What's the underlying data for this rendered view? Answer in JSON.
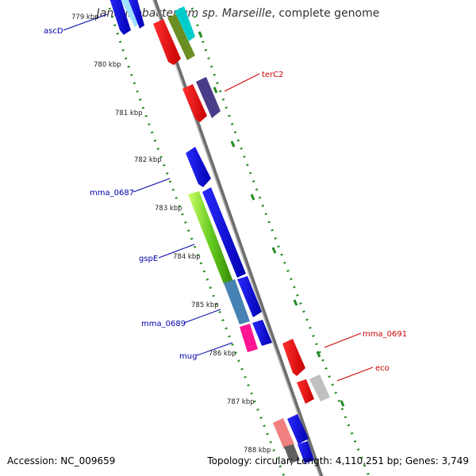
{
  "title": {
    "organism": "Janthinobacterium sp. Marseille",
    "suffix": ", complete genome"
  },
  "footer": {
    "accession": "Accession: NC_009659",
    "topology": "Topology: circular; Length: 4,110,251 bp; Genes: 3,749"
  },
  "ticks": [
    "779 kbp",
    "780 kbp",
    "781 kbp",
    "782 kbp",
    "783 kbp",
    "784 kbp",
    "785 kbp",
    "786 kbp",
    "787 kbp",
    "788 kbp"
  ],
  "gene_labels": {
    "forward": [
      "terC2",
      "mma_0691",
      "eco"
    ],
    "reverse": [
      "ascD",
      "mma_0687",
      "gspE",
      "mma_0689",
      "mug"
    ]
  },
  "colors": {
    "backbone": "#808080",
    "tick_dots": "#228B22",
    "forward_label": "#cc0000",
    "reverse_label": "#0000aa"
  }
}
